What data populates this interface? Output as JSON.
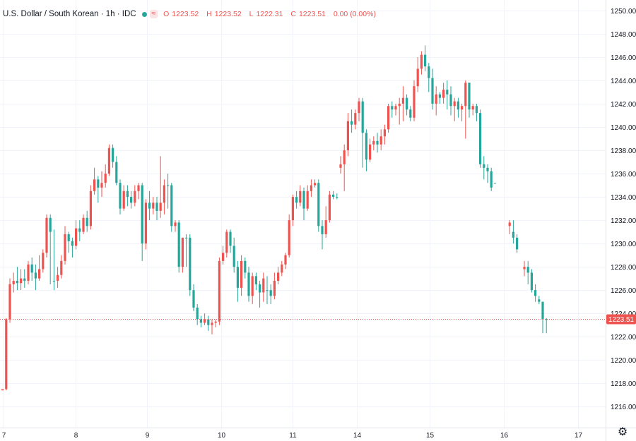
{
  "legend": {
    "title": "U.S. Dollar / South Korean · 1h · IDC",
    "indicator": "≈",
    "open_label": "O",
    "open": "1223.52",
    "high_label": "H",
    "high": "1223.52",
    "low_label": "L",
    "low": "1222.31",
    "close_label": "C",
    "close": "1223.51",
    "change": "0.00 (0.00%)"
  },
  "price_tag": "1223.51",
  "settings_icon": "gear-icon",
  "colors": {
    "up": "#26a69a",
    "down": "#ef5350",
    "grid": "#f0f3fa",
    "text": "#131722"
  },
  "chart_data": {
    "type": "candlestick",
    "title": "U.S. Dollar / South Korean",
    "interval": "1h",
    "source": "IDC",
    "ylim": [
      1214.2,
      1250.9
    ],
    "y_ticks": [
      "1216.00",
      "1218.00",
      "1220.00",
      "1222.00",
      "1224.00",
      "1226.00",
      "1228.00",
      "1230.00",
      "1232.00",
      "1234.00",
      "1236.00",
      "1238.00",
      "1240.00",
      "1242.00",
      "1244.00",
      "1246.00",
      "1248.00",
      "1250.00"
    ],
    "x_tick_labels": [
      "7",
      "8",
      "9",
      "10",
      "11",
      "14",
      "15",
      "16",
      "17"
    ],
    "last_price": 1223.51,
    "grid": true,
    "candles": [
      [
        1217.5,
        1217.5,
        1217.4,
        1217.4
      ],
      [
        1223.5,
        1223.6,
        1217.4,
        1217.5
      ],
      [
        1226.5,
        1227.0,
        1223.2,
        1223.5
      ],
      [
        1226.8,
        1227.5,
        1225.8,
        1226.5
      ],
      [
        1226.6,
        1228.0,
        1226.0,
        1226.8
      ],
      [
        1227.0,
        1227.8,
        1226.0,
        1226.6
      ],
      [
        1226.8,
        1227.8,
        1226.2,
        1227.0
      ],
      [
        1228.2,
        1228.5,
        1226.5,
        1226.8
      ],
      [
        1227.5,
        1228.8,
        1226.8,
        1228.2
      ],
      [
        1227.0,
        1228.2,
        1226.0,
        1227.5
      ],
      [
        1227.8,
        1229.0,
        1226.8,
        1227.0
      ],
      [
        1229.2,
        1229.5,
        1227.5,
        1227.8
      ],
      [
        1232.2,
        1232.5,
        1228.8,
        1229.2
      ],
      [
        1231.0,
        1232.5,
        1226.5,
        1232.2
      ],
      [
        1226.8,
        1231.2,
        1226.0,
        1226.8
      ],
      [
        1227.3,
        1228.0,
        1226.2,
        1226.8
      ],
      [
        1228.5,
        1229.0,
        1227.0,
        1227.3
      ],
      [
        1230.8,
        1231.5,
        1228.2,
        1228.5
      ],
      [
        1230.2,
        1231.0,
        1229.2,
        1230.8
      ],
      [
        1229.8,
        1230.5,
        1228.8,
        1230.2
      ],
      [
        1231.3,
        1232.0,
        1229.5,
        1229.8
      ],
      [
        1231.0,
        1232.0,
        1230.2,
        1231.3
      ],
      [
        1232.2,
        1232.5,
        1230.8,
        1231.0
      ],
      [
        1231.5,
        1232.8,
        1231.0,
        1232.2
      ],
      [
        1234.5,
        1235.0,
        1231.2,
        1231.5
      ],
      [
        1235.5,
        1236.5,
        1234.2,
        1234.5
      ],
      [
        1234.8,
        1235.8,
        1233.5,
        1235.5
      ],
      [
        1235.2,
        1236.2,
        1234.0,
        1234.8
      ],
      [
        1236.0,
        1236.8,
        1234.8,
        1235.2
      ],
      [
        1238.2,
        1238.5,
        1235.8,
        1236.0
      ],
      [
        1237.0,
        1238.5,
        1236.5,
        1238.2
      ],
      [
        1235.2,
        1237.5,
        1235.0,
        1237.0
      ],
      [
        1233.0,
        1235.5,
        1232.5,
        1235.2
      ],
      [
        1234.5,
        1235.0,
        1232.8,
        1233.0
      ],
      [
        1234.0,
        1235.0,
        1233.2,
        1234.5
      ],
      [
        1233.5,
        1234.5,
        1233.0,
        1234.0
      ],
      [
        1234.5,
        1235.0,
        1233.2,
        1233.5
      ],
      [
        1235.0,
        1235.2,
        1233.8,
        1234.5
      ],
      [
        1230.0,
        1235.2,
        1228.5,
        1235.0
      ],
      [
        1233.5,
        1233.8,
        1229.5,
        1230.0
      ],
      [
        1233.0,
        1234.5,
        1232.0,
        1233.5
      ],
      [
        1233.5,
        1234.0,
        1232.5,
        1233.0
      ],
      [
        1232.8,
        1234.0,
        1232.0,
        1233.5
      ],
      [
        1233.5,
        1237.5,
        1232.2,
        1232.8
      ],
      [
        1235.0,
        1235.5,
        1232.5,
        1233.5
      ],
      [
        1235.0,
        1236.0,
        1233.0,
        1235.0
      ],
      [
        1231.5,
        1235.2,
        1231.0,
        1235.0
      ],
      [
        1231.8,
        1232.0,
        1231.0,
        1231.5
      ],
      [
        1228.0,
        1232.0,
        1227.5,
        1231.8
      ],
      [
        1230.5,
        1230.5,
        1227.5,
        1228.0
      ],
      [
        1230.5,
        1230.8,
        1228.0,
        1230.5
      ],
      [
        1226.0,
        1230.8,
        1225.5,
        1230.5
      ],
      [
        1224.5,
        1226.5,
        1224.2,
        1226.0
      ],
      [
        1223.5,
        1224.8,
        1223.0,
        1224.5
      ],
      [
        1223.2,
        1223.8,
        1222.8,
        1223.5
      ],
      [
        1223.5,
        1224.0,
        1223.0,
        1223.2
      ],
      [
        1223.0,
        1223.8,
        1222.5,
        1223.5
      ],
      [
        1223.2,
        1223.5,
        1222.2,
        1223.0
      ],
      [
        1223.3,
        1223.5,
        1222.8,
        1223.2
      ],
      [
        1228.5,
        1228.8,
        1223.0,
        1223.3
      ],
      [
        1229.2,
        1229.8,
        1228.2,
        1228.5
      ],
      [
        1231.0,
        1231.2,
        1228.8,
        1229.2
      ],
      [
        1229.8,
        1231.2,
        1229.2,
        1231.0
      ],
      [
        1228.0,
        1230.5,
        1227.5,
        1229.8
      ],
      [
        1226.2,
        1228.5,
        1225.0,
        1228.0
      ],
      [
        1228.5,
        1229.0,
        1225.5,
        1226.2
      ],
      [
        1227.5,
        1228.8,
        1227.0,
        1228.5
      ],
      [
        1225.5,
        1228.0,
        1225.0,
        1227.5
      ],
      [
        1227.2,
        1227.5,
        1224.8,
        1225.5
      ],
      [
        1226.5,
        1227.5,
        1226.0,
        1227.2
      ],
      [
        1225.8,
        1226.8,
        1224.5,
        1226.5
      ],
      [
        1227.0,
        1227.5,
        1225.0,
        1225.8
      ],
      [
        1226.0,
        1227.2,
        1224.8,
        1226.0
      ],
      [
        1225.5,
        1226.5,
        1224.8,
        1226.0
      ],
      [
        1226.8,
        1227.5,
        1225.2,
        1225.5
      ],
      [
        1227.5,
        1228.0,
        1226.5,
        1226.8
      ],
      [
        1228.2,
        1228.5,
        1227.2,
        1227.5
      ],
      [
        1229.0,
        1229.2,
        1227.8,
        1228.2
      ],
      [
        1232.0,
        1232.5,
        1228.8,
        1229.0
      ],
      [
        1234.0,
        1234.2,
        1231.5,
        1232.0
      ],
      [
        1233.5,
        1234.5,
        1233.0,
        1234.0
      ],
      [
        1234.5,
        1235.0,
        1233.2,
        1233.5
      ],
      [
        1233.0,
        1234.8,
        1232.0,
        1234.5
      ],
      [
        1234.5,
        1235.0,
        1232.8,
        1233.0
      ],
      [
        1235.0,
        1235.5,
        1234.0,
        1234.5
      ],
      [
        1235.2,
        1235.5,
        1234.8,
        1235.0
      ],
      [
        1231.5,
        1235.5,
        1231.0,
        1235.2
      ],
      [
        1230.8,
        1232.0,
        1229.5,
        1231.5
      ],
      [
        1232.0,
        1233.2,
        1230.5,
        1230.8
      ],
      [
        1234.2,
        1234.5,
        1231.8,
        1232.0
      ],
      [
        1234.0,
        1234.5,
        1233.8,
        1234.2
      ],
      [
        1234.0,
        1234.3,
        1233.8,
        1234.0
      ],
      [
        1236.8,
        1237.5,
        1236.0,
        1236.5
      ],
      [
        1238.0,
        1238.5,
        1234.5,
        1236.8
      ],
      [
        1240.5,
        1241.2,
        1237.5,
        1238.0
      ],
      [
        1240.2,
        1241.5,
        1239.5,
        1240.5
      ],
      [
        1241.2,
        1241.5,
        1239.8,
        1240.2
      ],
      [
        1242.2,
        1242.5,
        1240.5,
        1241.2
      ],
      [
        1239.5,
        1242.5,
        1236.5,
        1242.2
      ],
      [
        1237.2,
        1239.8,
        1236.2,
        1239.5
      ],
      [
        1238.5,
        1239.0,
        1237.0,
        1237.2
      ],
      [
        1238.8,
        1239.2,
        1238.0,
        1238.5
      ],
      [
        1238.5,
        1239.5,
        1237.8,
        1238.8
      ],
      [
        1239.2,
        1239.8,
        1238.0,
        1238.5
      ],
      [
        1239.8,
        1240.2,
        1238.5,
        1239.2
      ],
      [
        1241.8,
        1242.0,
        1239.5,
        1239.8
      ],
      [
        1241.5,
        1242.2,
        1240.8,
        1241.8
      ],
      [
        1241.8,
        1242.0,
        1241.0,
        1241.5
      ],
      [
        1242.0,
        1242.5,
        1240.2,
        1241.8
      ],
      [
        1242.5,
        1243.5,
        1240.5,
        1242.0
      ],
      [
        1241.5,
        1242.8,
        1241.0,
        1242.5
      ],
      [
        1240.8,
        1241.8,
        1240.5,
        1241.5
      ],
      [
        1243.5,
        1244.0,
        1240.5,
        1240.8
      ],
      [
        1245.0,
        1246.0,
        1243.0,
        1243.5
      ],
      [
        1246.2,
        1246.5,
        1244.5,
        1245.0
      ],
      [
        1245.2,
        1247.0,
        1244.8,
        1246.2
      ],
      [
        1244.2,
        1245.5,
        1243.0,
        1245.2
      ],
      [
        1242.0,
        1245.0,
        1241.5,
        1244.2
      ],
      [
        1242.8,
        1243.5,
        1241.0,
        1242.0
      ],
      [
        1242.5,
        1243.0,
        1242.0,
        1242.8
      ],
      [
        1243.2,
        1243.8,
        1242.0,
        1242.5
      ],
      [
        1242.8,
        1244.0,
        1241.5,
        1243.2
      ],
      [
        1241.8,
        1243.5,
        1241.0,
        1242.8
      ],
      [
        1242.2,
        1242.5,
        1240.5,
        1241.8
      ],
      [
        1241.5,
        1242.5,
        1240.8,
        1242.2
      ],
      [
        1241.8,
        1242.0,
        1240.5,
        1241.5
      ],
      [
        1243.8,
        1244.0,
        1239.0,
        1241.8
      ],
      [
        1241.5,
        1243.8,
        1240.8,
        1243.8
      ],
      [
        1241.8,
        1242.0,
        1241.0,
        1241.5
      ],
      [
        1241.2,
        1242.0,
        1240.5,
        1241.8
      ],
      [
        1236.8,
        1241.5,
        1236.5,
        1241.2
      ],
      [
        1236.5,
        1237.5,
        1235.5,
        1236.8
      ],
      [
        1236.2,
        1236.8,
        1235.2,
        1236.5
      ],
      [
        1234.8,
        1236.5,
        1234.5,
        1236.2
      ],
      [
        1235.2,
        1235.2,
        1235.2,
        1235.2
      ],
      null,
      null,
      null,
      [
        1231.8,
        1232.0,
        1230.8,
        1231.5
      ],
      [
        1230.5,
        1232.0,
        1230.0,
        1231.0
      ],
      [
        1229.5,
        1230.8,
        1229.2,
        1230.5
      ],
      null,
      [
        1228.0,
        1228.5,
        1227.2,
        1227.8
      ],
      [
        1227.5,
        1228.5,
        1226.5,
        1228.0
      ],
      [
        1226.0,
        1227.8,
        1225.8,
        1227.5
      ],
      [
        1225.5,
        1226.5,
        1225.0,
        1226.0
      ],
      [
        1225.0,
        1225.5,
        1224.8,
        1225.2
      ],
      [
        1223.5,
        1225.0,
        1222.3,
        1225.0
      ],
      [
        1223.5,
        1223.6,
        1222.3,
        1223.5
      ]
    ]
  }
}
